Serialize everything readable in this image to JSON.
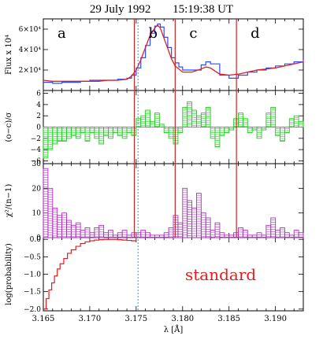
{
  "figure": {
    "date": "29 July 1992",
    "time": "15:19:38 UT",
    "annotation": "standard",
    "colors": {
      "observed": "#2a4bff",
      "model": "#e02020",
      "residual": "#22cc22",
      "chi2": "#b030c0",
      "probability": "#e02020",
      "boundary": "#c82828",
      "cursor": "#2aa8c8",
      "annotation": "#e02020"
    }
  },
  "chart_data": [
    {
      "type": "line",
      "panel": "flux",
      "ylabel": "Flux x 10⁴",
      "ylim": [
        0,
        7
      ],
      "yticks": [
        "2×10⁴",
        "4×10⁴",
        "6×10⁴"
      ],
      "ytick_values": [
        2,
        4,
        6
      ],
      "xlim": [
        3.165,
        3.193
      ],
      "regions": [
        "a",
        "b",
        "c",
        "d"
      ],
      "boundaries": [
        3.1748,
        3.1792,
        3.1858
      ],
      "series": [
        {
          "style": "histogram",
          "x": [
            3.165,
            3.166,
            3.167,
            3.168,
            3.169,
            3.17,
            3.171,
            3.172,
            3.173,
            3.174,
            3.1745,
            3.175,
            3.1755,
            3.176,
            3.1765,
            3.177,
            3.1773,
            3.1776,
            3.178,
            3.1784,
            3.1788,
            3.1792,
            3.1796,
            3.18,
            3.181,
            3.182,
            3.1825,
            3.183,
            3.184,
            3.185,
            3.186,
            3.187,
            3.188,
            3.189,
            3.19,
            3.191,
            3.192,
            3.193
          ],
          "y": [
            0.8,
            0.7,
            0.8,
            0.8,
            0.9,
            1.0,
            1.0,
            1.0,
            1.1,
            1.2,
            1.5,
            2.2,
            3.2,
            4.4,
            5.6,
            6.3,
            6.5,
            6.2,
            5.2,
            4.2,
            3.2,
            2.7,
            2.3,
            2.0,
            2.0,
            2.5,
            2.8,
            2.6,
            1.5,
            1.2,
            1.5,
            1.8,
            2.0,
            2.2,
            2.4,
            2.6,
            2.8,
            3.0
          ]
        },
        {
          "style": "line",
          "x": [
            3.165,
            3.166,
            3.167,
            3.168,
            3.169,
            3.17,
            3.171,
            3.172,
            3.173,
            3.174,
            3.1745,
            3.175,
            3.1755,
            3.176,
            3.1765,
            3.177,
            3.1773,
            3.1776,
            3.178,
            3.1784,
            3.1788,
            3.1792,
            3.1796,
            3.18,
            3.181,
            3.182,
            3.1825,
            3.183,
            3.184,
            3.185,
            3.186,
            3.187,
            3.188,
            3.189,
            3.19,
            3.191,
            3.192,
            3.193
          ],
          "y": [
            1.0,
            0.9,
            0.9,
            0.9,
            0.9,
            0.9,
            0.9,
            1.0,
            1.0,
            1.1,
            1.4,
            2.0,
            3.0,
            4.2,
            5.4,
            6.1,
            6.4,
            6.1,
            5.1,
            4.1,
            3.1,
            2.4,
            2.1,
            1.8,
            1.8,
            2.1,
            2.3,
            2.2,
            1.6,
            1.5,
            1.6,
            1.8,
            2.0,
            2.1,
            2.2,
            2.4,
            2.6,
            2.8
          ]
        }
      ]
    },
    {
      "type": "bar",
      "panel": "residual",
      "ylabel": "(o−c)/σ",
      "ylim": [
        -6.5,
        6.5
      ],
      "yticks": [
        "−6",
        "−4",
        "−2",
        "0",
        "2",
        "4",
        "6"
      ],
      "ytick_values": [
        -6,
        -4,
        -2,
        0,
        2,
        4,
        6
      ],
      "x": [
        3.165,
        3.1655,
        3.166,
        3.1665,
        3.167,
        3.1675,
        3.168,
        3.1685,
        3.169,
        3.1695,
        3.17,
        3.1705,
        3.171,
        3.1715,
        3.172,
        3.1725,
        3.173,
        3.1735,
        3.174,
        3.1745,
        3.175,
        3.1755,
        3.176,
        3.1765,
        3.177,
        3.1775,
        3.178,
        3.1785,
        3.179,
        3.1795,
        3.18,
        3.1805,
        3.181,
        3.1815,
        3.182,
        3.1825,
        3.183,
        3.1835,
        3.184,
        3.1845,
        3.185,
        3.1855,
        3.186,
        3.1865,
        3.187,
        3.1875,
        3.188,
        3.1885,
        3.189,
        3.1895,
        3.19,
        3.1905,
        3.191,
        3.1915,
        3.192,
        3.1925
      ],
      "values": [
        -5.5,
        -4.0,
        -3.0,
        -2.5,
        -2.5,
        -2.0,
        -1.5,
        -2.0,
        -1.0,
        -2.5,
        -1.0,
        -2.0,
        -3.0,
        -1.5,
        -2.0,
        -1.0,
        -1.5,
        -2.0,
        -1.0,
        -1.5,
        1.5,
        2.0,
        3.0,
        1.0,
        2.5,
        0.5,
        -1.0,
        -2.0,
        -3.0,
        -1.0,
        3.5,
        4.5,
        3.0,
        2.0,
        2.5,
        3.5,
        -2.0,
        -3.5,
        -1.5,
        -1.0,
        -0.5,
        1.5,
        2.5,
        1.5,
        -1.0,
        -0.5,
        -2.0,
        -0.5,
        2.5,
        3.5,
        -1.5,
        -2.5,
        -1.0,
        1.5,
        2.0,
        1.0
      ]
    },
    {
      "type": "bar",
      "panel": "chi2",
      "ylabel": "χ²/(n−1)",
      "ylim": [
        0,
        30
      ],
      "yticks": [
        "0",
        "10",
        "20",
        "30"
      ],
      "ytick_values": [
        0,
        10,
        20,
        30
      ],
      "x": [
        3.165,
        3.1655,
        3.166,
        3.1665,
        3.167,
        3.1675,
        3.168,
        3.1685,
        3.169,
        3.1695,
        3.17,
        3.1705,
        3.171,
        3.1715,
        3.172,
        3.1725,
        3.173,
        3.1735,
        3.174,
        3.1745,
        3.175,
        3.1755,
        3.176,
        3.1765,
        3.177,
        3.1775,
        3.178,
        3.1785,
        3.179,
        3.1795,
        3.18,
        3.1805,
        3.181,
        3.1815,
        3.182,
        3.1825,
        3.183,
        3.1835,
        3.184,
        3.1845,
        3.185,
        3.1855,
        3.186,
        3.1865,
        3.187,
        3.1875,
        3.188,
        3.1885,
        3.189,
        3.1895,
        3.19,
        3.1905,
        3.191,
        3.1915,
        3.192,
        3.1925
      ],
      "values": [
        28,
        20,
        12,
        9,
        10,
        7,
        5,
        6,
        3,
        4,
        2,
        4,
        5,
        2,
        3,
        1,
        2,
        3,
        1,
        2,
        2,
        3,
        2,
        1,
        1,
        1,
        2,
        4,
        9,
        6,
        20,
        15,
        12,
        18,
        10,
        8,
        3,
        6,
        2,
        1,
        1,
        2,
        4,
        3,
        1,
        1,
        2,
        1,
        5,
        8,
        3,
        4,
        2,
        1,
        3,
        2
      ]
    },
    {
      "type": "line",
      "panel": "probability",
      "ylabel": "log(probability)",
      "ylim": [
        -2.05,
        0.05
      ],
      "yticks": [
        "−2.0",
        "−1.5",
        "−1.0",
        "−0.5",
        "0.0"
      ],
      "ytick_values": [
        -2.0,
        -1.5,
        -1.0,
        -0.5,
        0.0
      ],
      "xlabel": "λ [Å]",
      "xlim": [
        3.165,
        3.193
      ],
      "xticks": [
        "3.165",
        "3.170",
        "3.175",
        "3.180",
        "3.185",
        "3.190"
      ],
      "xtick_values": [
        3.165,
        3.17,
        3.175,
        3.18,
        3.185,
        3.19
      ],
      "cursor_x": 3.1752,
      "series": [
        {
          "style": "step",
          "x": [
            3.165,
            3.1653,
            3.1656,
            3.1659,
            3.1662,
            3.1665,
            3.1668,
            3.1672,
            3.1676,
            3.168,
            3.1685,
            3.169,
            3.1695,
            3.17,
            3.1705,
            3.171,
            3.1715,
            3.172,
            3.1725,
            3.173,
            3.1735,
            3.174,
            3.1745
          ],
          "y": [
            -2.0,
            -1.7,
            -1.45,
            -1.25,
            -1.05,
            -0.85,
            -0.7,
            -0.55,
            -0.4,
            -0.3,
            -0.2,
            -0.12,
            -0.07,
            -0.04,
            -0.02,
            -0.01,
            0.0,
            0.0,
            0.0,
            -0.01,
            -0.02,
            -0.03,
            -0.04
          ]
        }
      ]
    }
  ]
}
